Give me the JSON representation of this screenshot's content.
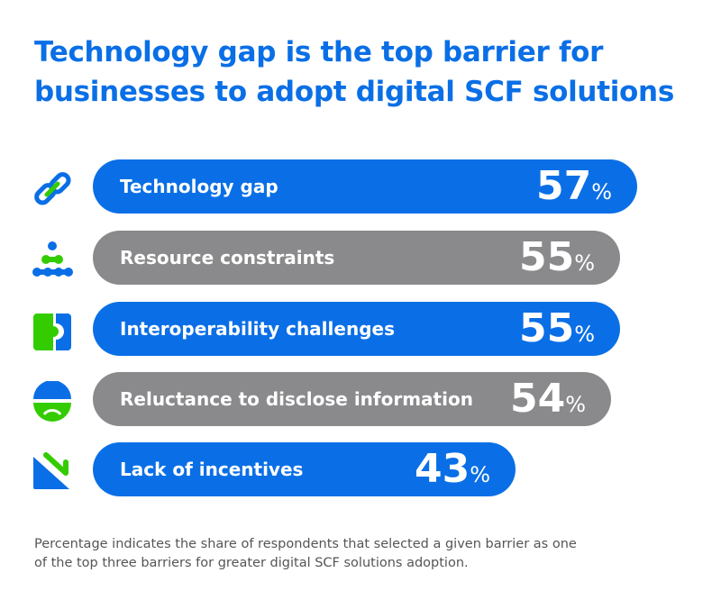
{
  "chart_data": {
    "type": "bar",
    "orientation": "horizontal",
    "title": "Technology gap is the top barrier for businesses to adopt digital SCF solutions",
    "categories": [
      "Technology gap",
      "Resource constraints",
      "Interoperability challenges",
      "Reluctance to disclose information",
      "Lack of incentives"
    ],
    "values": [
      57,
      55,
      55,
      54,
      43
    ],
    "unit": "%",
    "bar_colors": [
      "#0a6fe6",
      "#8a8a8c",
      "#0a6fe6",
      "#8a8a8c",
      "#0a6fe6"
    ],
    "icons": [
      "chain-link-icon",
      "people-network-icon",
      "puzzle-icon",
      "masked-face-icon",
      "declining-chart-icon"
    ],
    "footnote": "Percentage indicates the share of respondents that selected a given barrier as one of the top three barriers for greater digital SCF solutions adoption."
  },
  "colors": {
    "blue": "#0a6fe6",
    "gray": "#8a8a8c",
    "green": "#33cc00"
  }
}
